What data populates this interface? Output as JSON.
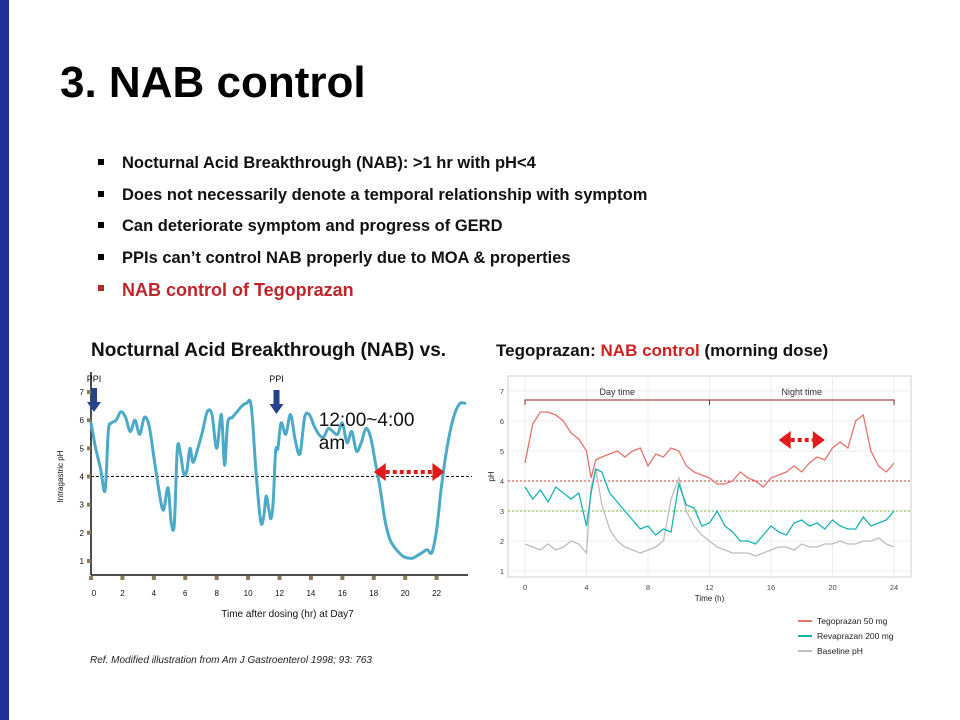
{
  "title": "3. NAB control",
  "bullets": [
    {
      "text": "Nocturnal Acid Breakthrough  (NAB): >1 hr with pH<4"
    },
    {
      "text": "Does not necessarily denote a temporal relationship  with symptom"
    },
    {
      "text": "Can deteriorate symptom and progress of GERD"
    },
    {
      "text": "PPIs can’t control NAB properly due to MOA & properties"
    },
    {
      "text": "NAB control  of Tegoprazan",
      "highlight": true
    }
  ],
  "subtitle_left": "Nocturnal Acid Breakthrough (NAB)  vs.",
  "subtitle_right": {
    "prefix": "Tegoprazan: ",
    "highlight": "NAB control",
    "suffix": " (morning dose)"
  },
  "reference": "Ref.  Modified illustration from Am J Gastroenterol  1998; 93: 763",
  "colors": {
    "accent_bar": "#1f2f9a",
    "highlight": "#d0211f",
    "line_left": "#4aaac8",
    "arrow": "#e01b1b",
    "tego": "#e8736b",
    "reva": "#16b3b3",
    "base": "#bdbdbd"
  },
  "chart_data": [
    {
      "type": "line",
      "xlabel": "Time after dosing (hr) at Day7",
      "ylabel": "Intragastric pH",
      "xticks": [
        "0",
        "2",
        "4",
        "6",
        "8",
        "10",
        "12",
        "14",
        "16",
        "18",
        "20",
        "22"
      ],
      "yticks": [
        "1",
        "2",
        "3",
        "4",
        "5",
        "6",
        "7"
      ],
      "xlim": [
        0,
        24
      ],
      "ylim": [
        0.5,
        7.5
      ],
      "reference_line": 4,
      "annotations": [
        {
          "text": "PPI",
          "x": 0
        },
        {
          "text": "PPI",
          "x": 12
        },
        {
          "text": "12:00~4:00 am",
          "x": 14.5
        }
      ],
      "nab_interval": [
        18,
        22.5
      ],
      "series": [
        {
          "x": [
            0,
            0.3,
            0.6,
            0.9,
            1.1,
            1.3,
            1.6,
            1.9,
            2.2,
            2.5,
            2.8,
            3.1,
            3.4,
            3.7,
            4.0,
            4.3,
            4.6,
            4.9,
            5.1,
            5.3,
            5.5,
            5.7,
            5.9,
            6.1,
            6.3,
            6.5,
            6.8,
            7.1,
            7.4,
            7.7,
            8.0,
            8.3,
            8.5,
            8.7,
            9.0,
            9.3,
            9.6,
            9.9,
            10.2,
            10.5,
            10.8,
            11.0,
            11.15,
            11.3,
            11.45,
            11.6,
            11.75,
            11.9,
            12.1,
            12.4,
            12.7,
            13.0,
            13.3,
            13.6,
            13.9,
            14.2,
            14.5,
            14.8,
            15.1,
            15.4,
            15.7,
            16.0,
            16.3,
            16.6,
            16.9,
            17.2,
            17.5,
            17.8,
            18.1,
            18.4,
            18.7,
            19.0,
            19.3,
            19.6,
            19.9,
            20.2,
            20.5,
            20.8,
            21.1,
            21.4,
            21.7,
            22.0,
            22.3,
            22.6,
            22.9,
            23.2,
            23.5,
            23.8
          ],
          "values": [
            5.9,
            5.0,
            4.3,
            3.5,
            5.6,
            5.9,
            6.0,
            6.3,
            6.1,
            5.6,
            6.0,
            5.5,
            6.1,
            5.8,
            4.7,
            3.6,
            2.8,
            3.6,
            2.4,
            2.3,
            5.0,
            4.8,
            4.1,
            4.2,
            5.0,
            4.5,
            5.0,
            5.6,
            6.3,
            6.2,
            5.0,
            6.2,
            4.4,
            5.9,
            6.1,
            6.3,
            6.5,
            6.6,
            6.5,
            4.2,
            2.4,
            2.6,
            3.3,
            2.9,
            2.5,
            3.1,
            4.9,
            5.0,
            5.9,
            5.5,
            6.2,
            5.3,
            4.8,
            6.1,
            6.2,
            5.8,
            5.5,
            5.4,
            5.7,
            5.6,
            5.5,
            5.9,
            5.2,
            5.6,
            4.9,
            5.2,
            5.7,
            5.4,
            4.5,
            3.6,
            2.5,
            1.8,
            1.5,
            1.3,
            1.15,
            1.1,
            1.1,
            1.2,
            1.3,
            1.4,
            1.3,
            2.1,
            3.6,
            4.8,
            5.7,
            6.3,
            6.6,
            6.6
          ]
        }
      ]
    },
    {
      "type": "line",
      "xlabel": "Time (h)",
      "ylabel": "pH",
      "xticks": [
        "0",
        "4",
        "8",
        "12",
        "16",
        "20",
        "24"
      ],
      "yticks": [
        "1",
        "2",
        "3",
        "4",
        "5",
        "6",
        "7"
      ],
      "xlim": [
        0,
        24
      ],
      "ylim": [
        0.8,
        7.5
      ],
      "bracket_labels": [
        "Day time",
        "Night time"
      ],
      "reference_lines": [
        4,
        3
      ],
      "nab_interval": [
        16.5,
        19.5
      ],
      "legend_position": "bottom-right",
      "series": [
        {
          "name": "Tegoprazan 50 mg",
          "x": [
            0,
            0.5,
            1,
            1.5,
            2,
            2.5,
            3,
            3.5,
            4,
            4.3,
            4.6,
            5,
            5.5,
            6,
            6.5,
            7,
            7.5,
            8,
            8.5,
            9,
            9.5,
            10,
            10.5,
            11,
            11.5,
            12,
            12.5,
            13,
            13.5,
            14,
            14.5,
            15,
            15.5,
            16,
            16.5,
            17,
            17.5,
            18,
            18.5,
            19,
            19.5,
            20,
            20.5,
            21,
            21.5,
            22,
            22.5,
            23,
            23.5,
            24
          ],
          "values": [
            4.6,
            5.9,
            6.3,
            6.3,
            6.2,
            6.0,
            5.6,
            5.4,
            5.0,
            4.1,
            4.7,
            4.8,
            4.9,
            5.0,
            4.8,
            5.0,
            5.1,
            4.5,
            4.9,
            4.8,
            5.1,
            5.0,
            4.5,
            4.3,
            4.2,
            4.1,
            3.9,
            3.9,
            4.0,
            4.3,
            4.1,
            4.0,
            3.8,
            4.1,
            4.2,
            4.3,
            4.5,
            4.3,
            4.6,
            4.8,
            4.7,
            5.1,
            5.3,
            5.1,
            6.0,
            6.2,
            5.0,
            4.5,
            4.3,
            4.6
          ]
        },
        {
          "name": "Revaprazan 200 mg",
          "x": [
            0,
            0.5,
            1,
            1.5,
            2,
            2.5,
            3,
            3.5,
            4,
            4.3,
            4.6,
            5,
            5.5,
            6,
            6.5,
            7,
            7.5,
            8,
            8.5,
            9,
            9.5,
            10,
            10.5,
            11,
            11.5,
            12,
            12.5,
            13,
            13.5,
            14,
            14.5,
            15,
            15.5,
            16,
            16.5,
            17,
            17.5,
            18,
            18.5,
            19,
            19.5,
            20,
            20.5,
            21,
            21.5,
            22,
            22.5,
            23,
            23.5,
            24
          ],
          "values": [
            3.8,
            3.4,
            3.7,
            3.3,
            3.8,
            3.6,
            3.4,
            3.6,
            2.5,
            3.6,
            4.4,
            4.3,
            3.6,
            3.3,
            3.0,
            2.7,
            2.4,
            2.5,
            2.2,
            2.4,
            2.3,
            3.9,
            3.2,
            3.1,
            2.5,
            2.6,
            3.0,
            2.5,
            2.3,
            2.0,
            2.0,
            1.9,
            2.2,
            2.5,
            2.3,
            2.2,
            2.6,
            2.7,
            2.5,
            2.6,
            2.4,
            2.7,
            2.5,
            2.4,
            2.4,
            2.8,
            2.5,
            2.6,
            2.7,
            3.0
          ]
        },
        {
          "name": "Baseline pH",
          "x": [
            0,
            0.5,
            1,
            1.5,
            2,
            2.5,
            3,
            3.5,
            4,
            4.3,
            4.6,
            5,
            5.5,
            6,
            6.5,
            7,
            7.5,
            8,
            8.5,
            9,
            9.5,
            10,
            10.5,
            11,
            11.5,
            12,
            12.5,
            13,
            13.5,
            14,
            14.5,
            15,
            15.5,
            16,
            16.5,
            17,
            17.5,
            18,
            18.5,
            19,
            19.5,
            20,
            20.5,
            21,
            21.5,
            22,
            22.5,
            23,
            23.5,
            24
          ],
          "values": [
            1.9,
            1.8,
            1.7,
            1.9,
            1.7,
            1.8,
            2.0,
            1.9,
            1.6,
            3.8,
            4.4,
            3.2,
            2.4,
            2.0,
            1.8,
            1.7,
            1.6,
            1.7,
            1.8,
            2.0,
            3.4,
            4.1,
            3.0,
            2.5,
            2.2,
            2.0,
            1.8,
            1.7,
            1.6,
            1.6,
            1.6,
            1.5,
            1.6,
            1.7,
            1.8,
            1.8,
            1.7,
            1.9,
            1.8,
            1.8,
            1.9,
            1.9,
            2.0,
            1.9,
            1.9,
            2.0,
            2.0,
            2.1,
            1.9,
            1.8
          ]
        }
      ]
    }
  ]
}
